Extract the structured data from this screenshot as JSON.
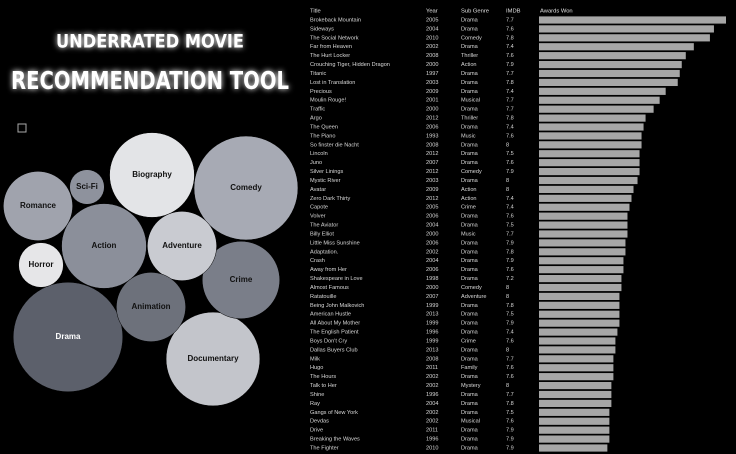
{
  "header": {
    "line1": "UNDERRATED MOVIE",
    "line2": "RECOMMENDATION TOOL"
  },
  "bubbles": {
    "type": "bubble",
    "items": [
      {
        "name": "Drama",
        "value": 30,
        "color": "#5c606b"
      },
      {
        "name": "Comedy",
        "value": 27,
        "color": "#a7aab4"
      },
      {
        "name": "Documentary",
        "value": 22,
        "color": "#c3c5cb"
      },
      {
        "name": "Biography",
        "value": 18,
        "color": "#e3e4e7"
      },
      {
        "name": "Action",
        "value": 18,
        "color": "#8b8f9a"
      },
      {
        "name": "Crime",
        "value": 15,
        "color": "#7a7e89"
      },
      {
        "name": "Adventure",
        "value": 12,
        "color": "#c9cbd1"
      },
      {
        "name": "Romance",
        "value": 12,
        "color": "#a0a3ad"
      },
      {
        "name": "Animation",
        "value": 12,
        "color": "#6d717b"
      },
      {
        "name": "Horror",
        "value": 5,
        "color": "#e6e6e8"
      },
      {
        "name": "Sci-Fi",
        "value": 3,
        "color": "#8e929d"
      }
    ]
  },
  "table": {
    "columns": [
      "Title",
      "Year",
      "Sub Genre",
      "IMDB",
      "Awards Won"
    ],
    "awards_color": "#a6a6a6",
    "rows": [
      [
        "Brokeback Mountain",
        "2005",
        "Drama",
        "7.7"
      ],
      [
        "Sideways",
        "2004",
        "Drama",
        "7.6"
      ],
      [
        "The Social Network",
        "2010",
        "Comedy",
        "7.8"
      ],
      [
        "Far from Heaven",
        "2002",
        "Drama",
        "7.4"
      ],
      [
        "The Hurt Locker",
        "2008",
        "Thriller",
        "7.6"
      ],
      [
        "Crouching Tiger, Hidden Dragon",
        "2000",
        "Action",
        "7.9"
      ],
      [
        "Titanic",
        "1997",
        "Drama",
        "7.7"
      ],
      [
        "Lost in Translation",
        "2003",
        "Drama",
        "7.8"
      ],
      [
        "Precious",
        "2009",
        "Drama",
        "7.4"
      ],
      [
        "Moulin Rouge!",
        "2001",
        "Musical",
        "7.7"
      ],
      [
        "Traffic",
        "2000",
        "Drama",
        "7.7"
      ],
      [
        "Argo",
        "2012",
        "Thriller",
        "7.8"
      ],
      [
        "The Queen",
        "2006",
        "Drama",
        "7.4"
      ],
      [
        "The Piano",
        "1993",
        "Music",
        "7.6"
      ],
      [
        "So finster die Nacht",
        "2008",
        "Drama",
        "8"
      ],
      [
        "Lincoln",
        "2012",
        "Drama",
        "7.5"
      ],
      [
        "Juno",
        "2007",
        "Drama",
        "7.6"
      ],
      [
        "Silver Linings",
        "2012",
        "Comedy",
        "7.9"
      ],
      [
        "Mystic River",
        "2003",
        "Drama",
        "8"
      ],
      [
        "Avatar",
        "2009",
        "Action",
        "8"
      ],
      [
        "Zero Dark Thirty",
        "2012",
        "Action",
        "7.4"
      ],
      [
        "Capote",
        "2005",
        "Crime",
        "7.4"
      ],
      [
        "Volver",
        "2006",
        "Drama",
        "7.6"
      ],
      [
        "The Aviator",
        "2004",
        "Drama",
        "7.5"
      ],
      [
        "Billy Elliot",
        "2000",
        "Music",
        "7.7"
      ],
      [
        "Little Miss Sunshine",
        "2006",
        "Drama",
        "7.9"
      ],
      [
        "Adaptation.",
        "2002",
        "Drama",
        "7.8"
      ],
      [
        "Crash",
        "2004",
        "Drama",
        "7.9"
      ],
      [
        "Away from Her",
        "2006",
        "Drama",
        "7.6"
      ],
      [
        "Shakespeare in Love",
        "1998",
        "Drama",
        "7.2"
      ],
      [
        "Almost Famous",
        "2000",
        "Comedy",
        "8"
      ],
      [
        "Ratatouille",
        "2007",
        "Adventure",
        "8"
      ],
      [
        "Being John Malkovich",
        "1999",
        "Drama",
        "7.8"
      ],
      [
        "American Hustle",
        "2013",
        "Drama",
        "7.5"
      ],
      [
        "All About My Mother",
        "1999",
        "Drama",
        "7.9"
      ],
      [
        "The English Patient",
        "1996",
        "Drama",
        "7.4"
      ],
      [
        "Boys Don't Cry",
        "1999",
        "Crime",
        "7.6"
      ],
      [
        "Dallas Buyers Club",
        "2013",
        "Drama",
        "8"
      ],
      [
        "Milk",
        "2008",
        "Drama",
        "7.7"
      ],
      [
        "Hugo",
        "2011",
        "Family",
        "7.6"
      ],
      [
        "The Hours",
        "2002",
        "Drama",
        "7.6"
      ],
      [
        "Talk to Her",
        "2002",
        "Mystery",
        "8"
      ],
      [
        "Shine",
        "1996",
        "Drama",
        "7.7"
      ],
      [
        "Ray",
        "2004",
        "Drama",
        "7.8"
      ],
      [
        "Gangs of New York",
        "2002",
        "Drama",
        "7.5"
      ],
      [
        "Devdas",
        "2002",
        "Musical",
        "7.6"
      ],
      [
        "Drive",
        "2011",
        "Drama",
        "7.9"
      ],
      [
        "Breaking the Waves",
        "1996",
        "Drama",
        "7.9"
      ],
      [
        "The Fighter",
        "2010",
        "Drama",
        "7.9"
      ]
    ],
    "awards": [
      93,
      87,
      85,
      77,
      73,
      71,
      70,
      69,
      63,
      60,
      57,
      53,
      52,
      51,
      51,
      50,
      50,
      50,
      49,
      47,
      46,
      45,
      44,
      44,
      44,
      43,
      43,
      42,
      42,
      41,
      41,
      40,
      40,
      40,
      40,
      39,
      38,
      38,
      37,
      37,
      37,
      36,
      36,
      36,
      35,
      35,
      35,
      35,
      34
    ]
  }
}
